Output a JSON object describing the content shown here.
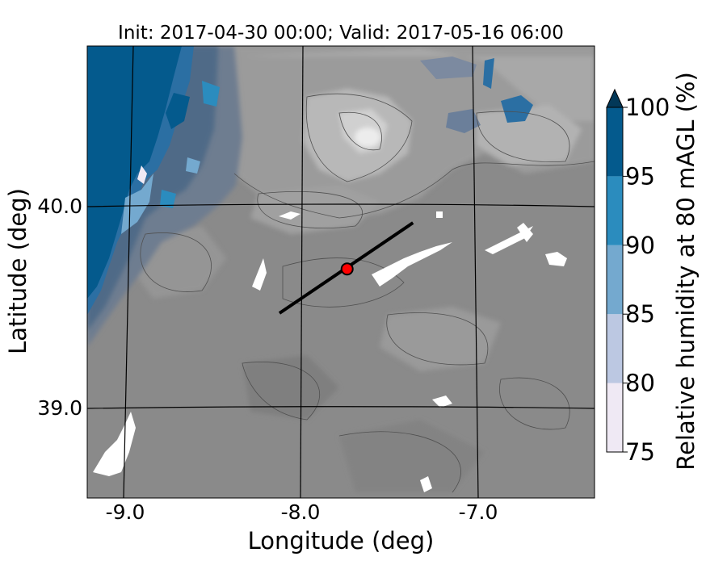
{
  "title": "Init: 2017-04-30 00:00; Valid: 2017-05-16 06:00",
  "xlabel": "Longitude (deg)",
  "ylabel": "Latitude (deg)",
  "colorbar": {
    "label": "Relative humidity at 80 mAGL (%)",
    "ticks": [
      "75",
      "80",
      "85",
      "90",
      "95",
      "100"
    ],
    "levels": [
      75,
      80,
      85,
      90,
      95,
      100
    ],
    "colors": [
      "#efe9f4",
      "#bcc8e2",
      "#74a9cf",
      "#2b8cbe",
      "#045a8d"
    ],
    "extend": "max",
    "extend_color": "#023858"
  },
  "map": {
    "x_ticks": [
      "-9.0",
      "-8.0",
      "-7.0"
    ],
    "y_ticks": [
      "40.0",
      "39.0"
    ],
    "lon_range": [
      -9.2,
      -6.35
    ],
    "lat_range": [
      38.55,
      40.8
    ],
    "land_color": "#8a8a8a",
    "marker": {
      "lon": -7.74,
      "lat": 39.69,
      "color": "#ff0000"
    },
    "transect": {
      "start": {
        "lon": -8.12,
        "lat": 39.47
      },
      "end": {
        "lon": -7.37,
        "lat": 39.92
      }
    }
  }
}
